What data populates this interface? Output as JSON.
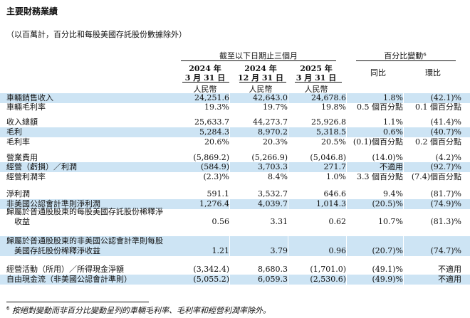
{
  "title": "主要財務業績",
  "subtitle": "（以百萬計，百分比和每股美國存託股份數據除外）",
  "header": {
    "group_period": "截至以下日期止三個月",
    "group_change": "百分比變動⁶",
    "col1_line1": "2024 年",
    "col1_line2": "3 月 31 日",
    "col2_line1": "2024 年",
    "col2_line2": "12 月 31 日",
    "col3_line1": "2025 年",
    "col3_line2": "3 月 31 日",
    "col4": "同比",
    "col5": "環比",
    "currency": "人民幣"
  },
  "rows": [
    {
      "label": "車輛銷售收入",
      "v": [
        "24,251.6",
        "42,643.0",
        "24,678.6",
        "1.8%",
        "(42.1)%"
      ]
    },
    {
      "label": "車輛毛利率",
      "v": [
        "19.3%",
        "19.7%",
        "19.8%",
        "0.5 個百分點",
        "0.1 個百分點"
      ]
    },
    {
      "label": "收入總額",
      "v": [
        "25,633.7",
        "44,273.7",
        "25,926.8",
        "1.1%",
        "(41.4)%"
      ]
    },
    {
      "label": "毛利",
      "v": [
        "5,284.3",
        "8,970.2",
        "5,318.5",
        "0.6%",
        "(40.7)%"
      ]
    },
    {
      "label": "毛利率",
      "v": [
        "20.6%",
        "20.3%",
        "20.5%",
        "(0.1)個百分點",
        "0.2 個百分點"
      ]
    },
    {
      "label": "營業費用",
      "v": [
        "(5,869.2)",
        "(5,266.9)",
        "(5,046.8)",
        "(14.0)%",
        "(4.2)%"
      ]
    },
    {
      "label": "經營（虧損）／利潤",
      "v": [
        "(584.9)",
        "3,703.3",
        "271.7",
        "不適用",
        "(92.7)%"
      ]
    },
    {
      "label": "經營利潤率",
      "v": [
        "(2.3)%",
        "8.4%",
        "1.0%",
        "3.3 個百分點",
        "(7.4)個百分點"
      ]
    },
    {
      "label": "淨利潤",
      "v": [
        "591.1",
        "3,532.7",
        "646.6",
        "9.4%",
        "(81.7)%"
      ]
    },
    {
      "label": "非美國公認會計準則淨利潤",
      "v": [
        "1,276.4",
        "4,039.7",
        "1,014.3",
        "(20.5)%",
        "(74.9)%"
      ]
    },
    {
      "label": "歸屬於普通股股東的每股美國存託股份稀釋淨",
      "label2": "收益",
      "v": [
        "0.56",
        "3.31",
        "0.62",
        "10.7%",
        "(81.3)%"
      ]
    },
    {
      "label": "歸屬於普通股股東的非美國公認會計準則每股",
      "label2": "美國存託股份稀釋淨收益",
      "v": [
        "1.21",
        "3.79",
        "0.96",
        "(20.7)%",
        "(74.7)%"
      ]
    },
    {
      "label": "經營活動（所用）／所得現金淨額",
      "v": [
        "(3,342.4)",
        "8,680.3",
        "(1,701.0)",
        "(49.1)%",
        "不適用"
      ]
    },
    {
      "label": "自由現金流（非美國公認會計準則）",
      "v": [
        "(5,055.2)",
        "6,059.3",
        "(2,530.6)",
        "(49.9)%",
        "不適用"
      ]
    }
  ],
  "footnote": {
    "mark": "6",
    "text": "按絕對變動而非百分比變動呈列的車輛毛利率、毛利率和經營利潤率除外。"
  }
}
